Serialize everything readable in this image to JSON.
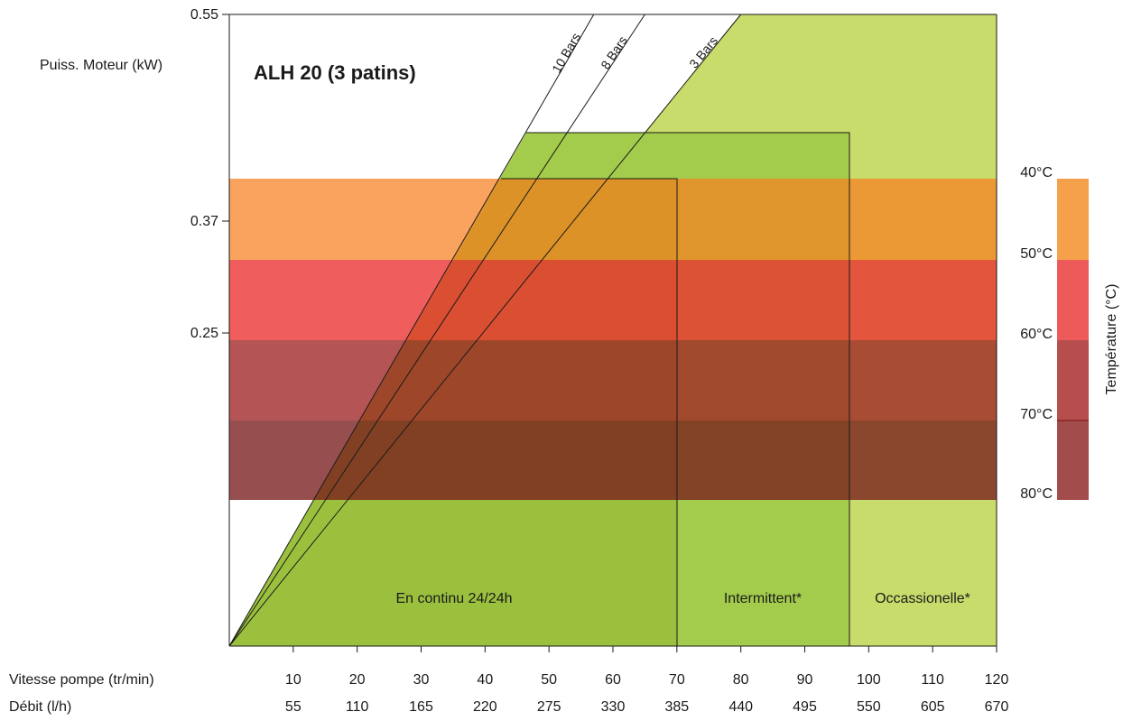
{
  "chart_data": {
    "type": "area",
    "title": "ALH 20 (3 patins)",
    "ylabel": "Puiss. Moteur (kW)",
    "y_ticks": [
      "0.55",
      "0.37",
      "0.25"
    ],
    "x_rows": [
      {
        "label": "Vitesse pompe (tr/min)",
        "ticks": [
          "10",
          "20",
          "30",
          "40",
          "50",
          "60",
          "70",
          "80",
          "90",
          "100",
          "110",
          "120"
        ]
      },
      {
        "label": "Débit (l/h)",
        "ticks": [
          "55",
          "110",
          "165",
          "220",
          "275",
          "330",
          "385",
          "440",
          "495",
          "550",
          "605",
          "670"
        ]
      }
    ],
    "xlim": [
      0,
      120
    ],
    "pressure_lines": [
      {
        "label": "10 Bars",
        "top_speed": 57
      },
      {
        "label": "8 Bars",
        "top_speed": 65
      },
      {
        "label": "3 Bars",
        "top_speed": 80
      }
    ],
    "zones": [
      {
        "label": "Occassionelle*",
        "speed_max": 120,
        "color": "#c8dc6c"
      },
      {
        "label": "Intermittent*",
        "speed_max": 97,
        "color": "#a3cc4c"
      },
      {
        "label": "En continu 24/24h",
        "speed_max": 70,
        "color": "#9bc03e"
      }
    ],
    "temperature_scale": {
      "label": "Température (°C)",
      "ticks": [
        "40°C",
        "50°C",
        "60°C",
        "70°C",
        "80°C"
      ],
      "bands": [
        "#f5a14c",
        "#ee5a5a",
        "#b64e4e",
        "#a34c4c"
      ]
    }
  }
}
